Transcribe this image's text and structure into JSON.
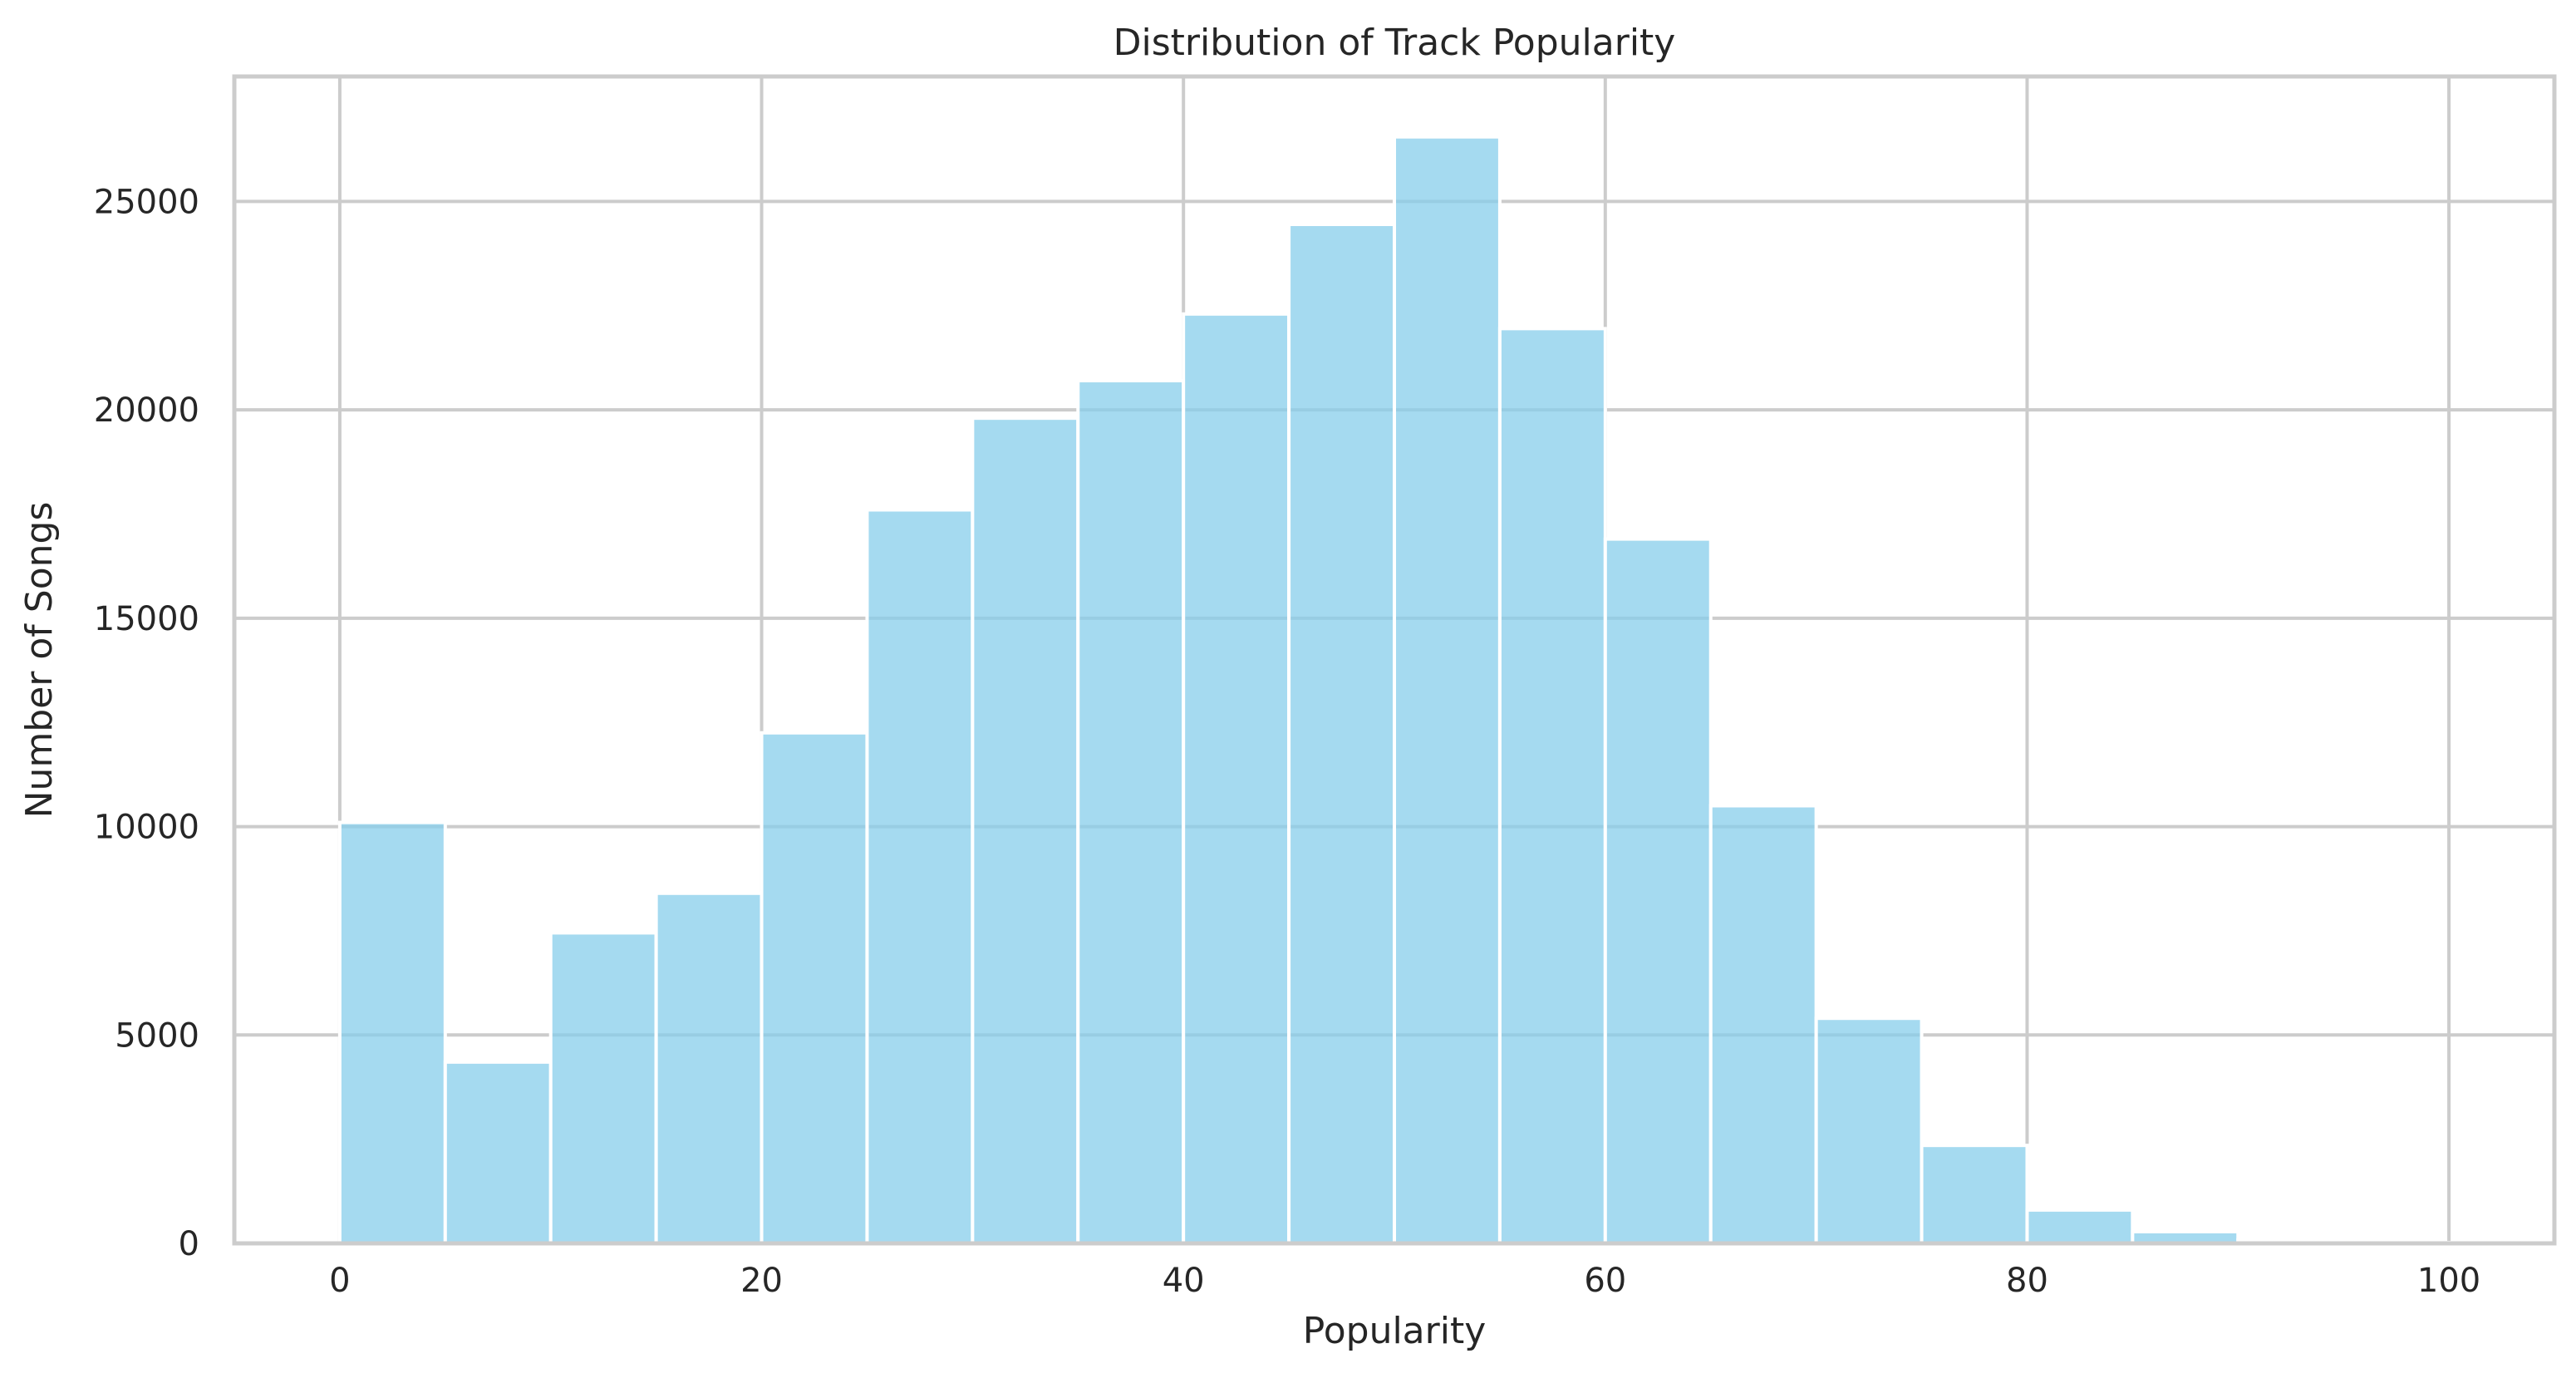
{
  "chart_data": {
    "type": "bar",
    "title": "Distribution of Track Popularity",
    "xlabel": "Popularity",
    "ylabel": "Number of Songs",
    "xlim": [
      -5,
      105
    ],
    "ylim": [
      0,
      28000
    ],
    "grid": true,
    "bin_width": 5,
    "bin_starts": [
      0,
      5,
      10,
      15,
      20,
      25,
      30,
      35,
      40,
      45,
      50,
      55,
      60,
      65,
      70,
      75,
      80,
      85,
      90,
      95
    ],
    "values": [
      10100,
      4350,
      7450,
      8400,
      12250,
      17600,
      19800,
      20700,
      22300,
      24450,
      26550,
      21950,
      16900,
      10500,
      5400,
      2350,
      800,
      280,
      80,
      20
    ],
    "x_ticks": [
      "0",
      "20",
      "40",
      "60",
      "80",
      "100"
    ],
    "y_ticks": [
      "0",
      "5000",
      "10000",
      "15000",
      "20000",
      "25000"
    ],
    "colors": {
      "bar": "#87ceeb",
      "bar_edge": "#ffffff",
      "grid": "#cccccc",
      "spine": "#cccccc",
      "text": "#262626"
    }
  }
}
